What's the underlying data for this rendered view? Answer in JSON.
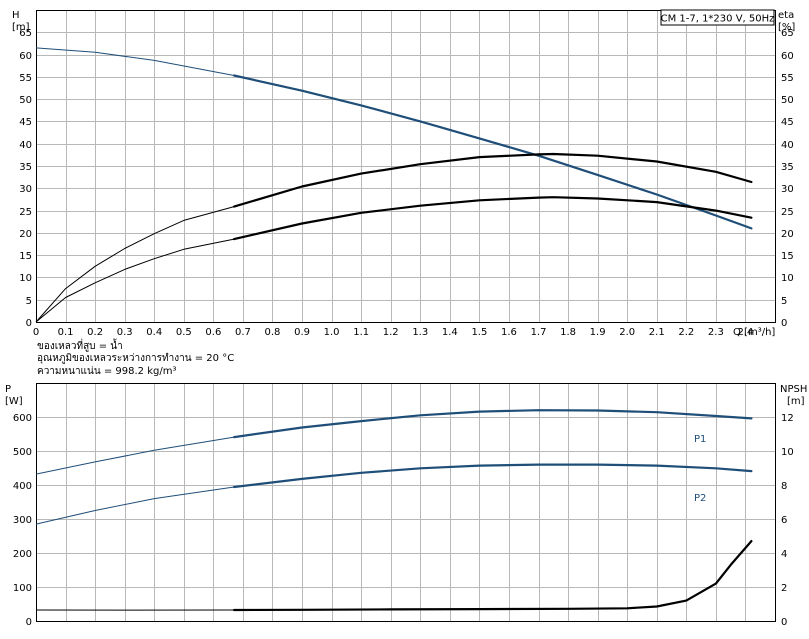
{
  "chart_data": [
    {
      "type": "line",
      "title": "CM 1-7, 1*230 V, 50Hz",
      "left_axis": {
        "label": "H",
        "unit": "[m]",
        "range": [
          0,
          70
        ],
        "ticks": [
          0,
          5,
          10,
          15,
          20,
          25,
          30,
          35,
          40,
          45,
          50,
          55,
          60,
          65
        ]
      },
      "right_axis": {
        "label": "eta",
        "unit": "[%]",
        "range": [
          0,
          70
        ],
        "ticks": [
          0,
          5,
          10,
          15,
          20,
          25,
          30,
          35,
          40,
          45,
          50,
          55,
          60,
          65
        ]
      },
      "x_axis": {
        "label": "Q [m³/h]",
        "range": [
          0,
          2.5
        ],
        "tick_labels": [
          "0",
          "0.1",
          "0.2",
          "0.3",
          "0.4",
          "0.5",
          "0.6",
          "0.7",
          "0.8",
          "0.9",
          "1.0",
          "1.1",
          "1.2",
          "1.3",
          "1.4",
          "1.5",
          "1.6",
          "1.7",
          "1.8",
          "1.9",
          "2.0",
          "2.1",
          "2.2",
          "2.3",
          "2.4"
        ]
      },
      "series": [
        {
          "id": "H",
          "axis": "left",
          "color": "#1f4e79",
          "x": [
            0,
            0.2,
            0.4,
            0.67,
            0.9,
            1.1,
            1.3,
            1.5,
            1.7,
            1.9,
            2.1,
            2.3,
            2.42
          ],
          "y": [
            61.5,
            60.5,
            58.7,
            55.3,
            51.9,
            48.6,
            45.0,
            41.2,
            37.3,
            33.0,
            28.6,
            23.9,
            21.0
          ],
          "operating_range": [
            0.67,
            2.42
          ]
        },
        {
          "id": "eta_upper",
          "axis": "right",
          "color": "#000000",
          "x": [
            0,
            0.1,
            0.2,
            0.3,
            0.4,
            0.5,
            0.67,
            0.9,
            1.1,
            1.3,
            1.5,
            1.7,
            1.75,
            1.9,
            2.1,
            2.3,
            2.42
          ],
          "y": [
            0,
            7.5,
            12.5,
            16.5,
            19.8,
            22.8,
            25.9,
            30.4,
            33.3,
            35.4,
            37.0,
            37.6,
            37.7,
            37.3,
            36.0,
            33.7,
            31.4
          ],
          "operating_range": [
            0.67,
            2.42
          ]
        },
        {
          "id": "eta_lower",
          "axis": "right",
          "color": "#000000",
          "x": [
            0,
            0.1,
            0.2,
            0.3,
            0.4,
            0.5,
            0.67,
            0.9,
            1.1,
            1.3,
            1.5,
            1.7,
            1.75,
            1.9,
            2.1,
            2.3,
            2.42
          ],
          "y": [
            0,
            5.5,
            8.8,
            11.8,
            14.2,
            16.3,
            18.6,
            22.1,
            24.5,
            26.1,
            27.3,
            27.9,
            28.0,
            27.7,
            26.9,
            25.0,
            23.4
          ],
          "operating_range": [
            0.67,
            2.42
          ]
        }
      ],
      "notes": [
        "ของเหลวที่สูบ = น้ำ",
        "อุณหภูมิของเหลวระหว่างการทำงาน = 20 °C",
        "ความหนาแน่น = 998.2 kg/m³"
      ]
    },
    {
      "type": "line",
      "left_axis": {
        "label": "P",
        "unit": "[W]",
        "range": [
          0,
          700
        ],
        "ticks": [
          0,
          100,
          200,
          300,
          400,
          500,
          600
        ]
      },
      "right_axis": {
        "label": "NPSH",
        "unit": "[m]",
        "range": [
          0,
          14
        ],
        "ticks": [
          0,
          2,
          4,
          6,
          8,
          10,
          12
        ]
      },
      "x_axis": {
        "range": [
          0,
          2.5
        ]
      },
      "series": [
        {
          "id": "P1",
          "name": "P1",
          "axis": "left",
          "color": "#1f4e79",
          "x": [
            0,
            0.2,
            0.4,
            0.67,
            0.9,
            1.1,
            1.3,
            1.5,
            1.7,
            1.9,
            2.1,
            2.3,
            2.42
          ],
          "y": [
            432,
            468,
            502,
            541,
            569,
            588,
            605,
            616,
            620,
            619,
            614,
            603,
            596
          ],
          "operating_range": [
            0.67,
            2.42
          ]
        },
        {
          "id": "P2",
          "name": "P2",
          "axis": "left",
          "color": "#1f4e79",
          "x": [
            0,
            0.2,
            0.4,
            0.67,
            0.9,
            1.1,
            1.3,
            1.5,
            1.7,
            1.9,
            2.1,
            2.3,
            2.42
          ],
          "y": [
            285,
            325,
            360,
            394,
            418,
            436,
            449,
            457,
            460,
            460,
            457,
            449,
            441
          ],
          "operating_range": [
            0.67,
            2.42
          ]
        },
        {
          "id": "NPSH",
          "axis": "right",
          "color": "#000000",
          "x": [
            0,
            0.3,
            0.67,
            0.9,
            1.2,
            1.5,
            1.8,
            2.0,
            2.1,
            2.2,
            2.3,
            2.35,
            2.42
          ],
          "y": [
            0.65,
            0.64,
            0.65,
            0.66,
            0.68,
            0.7,
            0.72,
            0.75,
            0.85,
            1.2,
            2.2,
            3.3,
            4.7
          ],
          "operating_range": [
            0.67,
            2.42
          ]
        }
      ]
    }
  ]
}
